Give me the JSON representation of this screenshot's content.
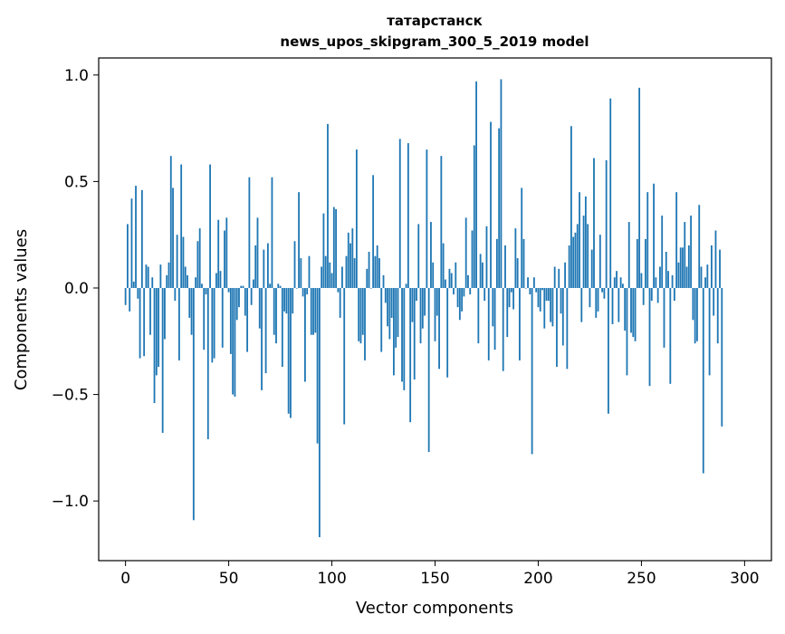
{
  "chart_data": {
    "type": "bar",
    "title_line1": "татарстанск",
    "title_line2": "news_upos_skipgram_300_5_2019 model",
    "xlabel": "Vector components",
    "ylabel": "Components values",
    "xlim": [
      -13,
      313
    ],
    "ylim": [
      -1.28,
      1.08
    ],
    "xticks": [
      0,
      50,
      100,
      150,
      200,
      250,
      300
    ],
    "xtick_labels": [
      "0",
      "50",
      "100",
      "150",
      "200",
      "250",
      "300"
    ],
    "yticks": [
      -1.0,
      -0.5,
      0.0,
      0.5,
      1.0
    ],
    "ytick_labels": [
      "−1.0",
      "−0.5",
      "0.0",
      "0.5",
      "1.0"
    ],
    "bar_color": "#1f77b4",
    "grid": false,
    "legend": "none",
    "x_start": 0,
    "values": [
      -0.08,
      0.3,
      -0.11,
      0.42,
      0.03,
      0.48,
      -0.05,
      -0.33,
      0.46,
      -0.32,
      0.11,
      0.1,
      -0.22,
      0.05,
      -0.54,
      -0.41,
      -0.37,
      0.11,
      -0.68,
      -0.24,
      0.06,
      0.12,
      0.62,
      0.47,
      -0.06,
      0.25,
      -0.34,
      0.58,
      0.24,
      0.1,
      0.06,
      -0.14,
      -0.22,
      -1.09,
      0.05,
      0.22,
      0.28,
      0.02,
      -0.29,
      -0.03,
      -0.71,
      0.58,
      -0.35,
      -0.33,
      0.07,
      0.32,
      0.08,
      -0.28,
      0.27,
      0.33,
      -0.02,
      -0.31,
      -0.5,
      -0.51,
      -0.15,
      -0.09,
      0.01,
      0.01,
      -0.13,
      -0.3,
      0.52,
      -0.08,
      0.04,
      0.2,
      0.33,
      -0.19,
      -0.48,
      0.18,
      -0.4,
      0.21,
      0.02,
      0.52,
      -0.22,
      -0.26,
      0.02,
      0.01,
      -0.37,
      -0.11,
      -0.12,
      -0.59,
      -0.61,
      -0.12,
      0.22,
      0.0,
      0.45,
      0.14,
      -0.04,
      -0.44,
      -0.03,
      0.15,
      -0.22,
      -0.22,
      -0.21,
      -0.73,
      -1.17,
      0.1,
      0.35,
      0.15,
      0.77,
      0.12,
      0.07,
      0.38,
      0.37,
      -0.02,
      -0.14,
      0.1,
      -0.64,
      0.15,
      0.26,
      0.21,
      0.28,
      0.14,
      0.65,
      -0.25,
      -0.26,
      -0.22,
      -0.34,
      0.09,
      0.17,
      0.0,
      0.53,
      0.15,
      0.2,
      0.14,
      -0.3,
      0.06,
      -0.07,
      -0.18,
      -0.24,
      -0.14,
      -0.41,
      -0.28,
      -0.23,
      0.7,
      -0.44,
      -0.48,
      0.02,
      0.68,
      -0.63,
      -0.16,
      -0.43,
      -0.06,
      0.3,
      -0.26,
      -0.19,
      -0.13,
      0.65,
      -0.77,
      0.31,
      0.12,
      -0.25,
      -0.13,
      -0.38,
      0.62,
      0.21,
      0.04,
      -0.42,
      0.09,
      0.07,
      -0.03,
      0.12,
      -0.09,
      -0.15,
      -0.11,
      -0.04,
      0.33,
      0.06,
      -0.03,
      0.27,
      0.67,
      0.97,
      -0.26,
      0.16,
      0.12,
      -0.06,
      0.29,
      -0.34,
      0.78,
      -0.18,
      -0.29,
      0.23,
      0.75,
      0.98,
      -0.39,
      0.2,
      -0.23,
      -0.09,
      -0.02,
      -0.1,
      0.28,
      0.14,
      -0.34,
      0.47,
      0.23,
      0.0,
      0.05,
      -0.03,
      -0.78,
      0.05,
      -0.02,
      -0.09,
      -0.11,
      -0.01,
      -0.19,
      -0.06,
      -0.06,
      -0.16,
      -0.18,
      0.1,
      -0.37,
      0.09,
      -0.12,
      -0.27,
      0.12,
      -0.38,
      0.2,
      0.76,
      0.24,
      0.26,
      0.3,
      0.45,
      -0.16,
      0.34,
      0.43,
      0.3,
      -0.09,
      0.18,
      0.61,
      -0.14,
      -0.11,
      0.25,
      -0.02,
      -0.05,
      0.6,
      -0.59,
      0.89,
      -0.17,
      0.05,
      0.08,
      -0.16,
      0.05,
      0.02,
      -0.2,
      -0.41,
      0.31,
      -0.21,
      -0.23,
      -0.25,
      0.23,
      0.94,
      0.07,
      -0.08,
      0.23,
      0.45,
      -0.46,
      -0.06,
      0.49,
      0.05,
      -0.07,
      0.1,
      0.34,
      -0.28,
      0.17,
      0.08,
      -0.45,
      0.06,
      -0.06,
      0.45,
      0.12,
      0.19,
      0.19,
      0.31,
      0.1,
      0.2,
      0.34,
      -0.15,
      -0.26,
      -0.25,
      0.39,
      0.1,
      -0.87,
      0.05,
      0.11,
      -0.41,
      0.2,
      -0.13,
      0.27,
      -0.26,
      0.18,
      -0.65
    ]
  }
}
